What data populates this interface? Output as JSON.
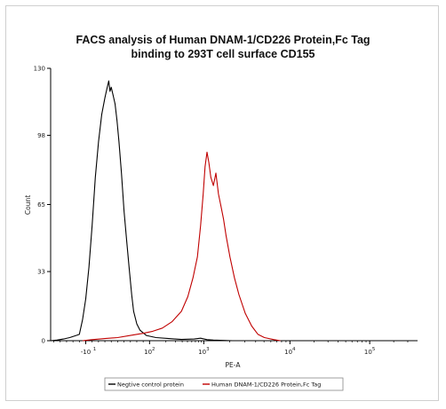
{
  "chart_data": {
    "type": "line",
    "title_line1": "FACS analysis of Human DNAM-1/CD226 Protein,Fc Tag",
    "title_line2": "binding to 293T cell surface CD155",
    "xlabel": "PE-A",
    "ylabel": "Count",
    "x_scale": "biexponential",
    "x_ticks": [
      {
        "value": -10,
        "label": "-10",
        "pre": "",
        "sup": ""
      },
      {
        "value": 100,
        "label": "10^2",
        "pre": "10",
        "sup": "2"
      },
      {
        "value": 1000,
        "label": "10^3",
        "pre": "10",
        "sup": "3"
      },
      {
        "value": 10000,
        "label": "10^4",
        "pre": "10",
        "sup": "4"
      },
      {
        "value": 100000,
        "label": "10^5",
        "pre": "10",
        "sup": "5"
      }
    ],
    "x_tick_pos": [
      0,
      1.0,
      1.85,
      3.2,
      4.45
    ],
    "x_axis_label_extra": {
      "pre": "",
      "sup": "1"
    },
    "xlim_display": [
      -0.55,
      5.2
    ],
    "ylim": [
      0,
      130
    ],
    "y_ticks": [
      0,
      33,
      65,
      98,
      130
    ],
    "grid": false,
    "legend_position": "bottom-center",
    "series": [
      {
        "name": "Negtive control protein",
        "color": "#000000",
        "points": [
          [
            -0.55,
            0
          ],
          [
            -0.45,
            0.3
          ],
          [
            -0.35,
            0.8
          ],
          [
            -0.25,
            1.5
          ],
          [
            -0.15,
            2.5
          ],
          [
            -0.1,
            3
          ],
          [
            -0.05,
            10
          ],
          [
            0,
            20
          ],
          [
            0.05,
            35
          ],
          [
            0.1,
            55
          ],
          [
            0.15,
            78
          ],
          [
            0.2,
            95
          ],
          [
            0.25,
            108
          ],
          [
            0.3,
            116
          ],
          [
            0.33,
            120
          ],
          [
            0.36,
            124
          ],
          [
            0.38,
            119
          ],
          [
            0.4,
            121
          ],
          [
            0.43,
            117
          ],
          [
            0.46,
            113
          ],
          [
            0.49,
            105
          ],
          [
            0.52,
            95
          ],
          [
            0.56,
            80
          ],
          [
            0.6,
            62
          ],
          [
            0.64,
            48
          ],
          [
            0.68,
            35
          ],
          [
            0.72,
            22
          ],
          [
            0.75,
            14
          ],
          [
            0.8,
            8
          ],
          [
            0.85,
            5
          ],
          [
            0.95,
            2.5
          ],
          [
            1.1,
            1.5
          ],
          [
            1.3,
            1
          ],
          [
            1.5,
            0.6
          ],
          [
            1.7,
            0.8
          ],
          [
            1.8,
            1.2
          ],
          [
            1.9,
            0.5
          ],
          [
            2.0,
            0.3
          ],
          [
            2.3,
            0
          ]
        ]
      },
      {
        "name": "Human DNAM-1/CD226 Protein,Fc Tag",
        "color": "#c00000",
        "points": [
          [
            -0.05,
            0
          ],
          [
            0.1,
            0.5
          ],
          [
            0.3,
            1
          ],
          [
            0.5,
            1.5
          ],
          [
            0.7,
            2.5
          ],
          [
            0.9,
            3.5
          ],
          [
            1.05,
            4.5
          ],
          [
            1.2,
            6
          ],
          [
            1.35,
            9
          ],
          [
            1.5,
            14
          ],
          [
            1.6,
            21
          ],
          [
            1.68,
            30
          ],
          [
            1.75,
            40
          ],
          [
            1.8,
            55
          ],
          [
            1.84,
            70
          ],
          [
            1.87,
            83
          ],
          [
            1.9,
            90
          ],
          [
            1.93,
            85
          ],
          [
            1.96,
            78
          ],
          [
            2.0,
            74
          ],
          [
            2.04,
            80
          ],
          [
            2.08,
            70
          ],
          [
            2.12,
            64
          ],
          [
            2.16,
            58
          ],
          [
            2.2,
            50
          ],
          [
            2.26,
            40
          ],
          [
            2.33,
            30
          ],
          [
            2.4,
            22
          ],
          [
            2.5,
            13
          ],
          [
            2.6,
            7
          ],
          [
            2.7,
            3
          ],
          [
            2.8,
            1.5
          ],
          [
            2.95,
            0.5
          ],
          [
            3.05,
            0
          ]
        ]
      }
    ]
  }
}
